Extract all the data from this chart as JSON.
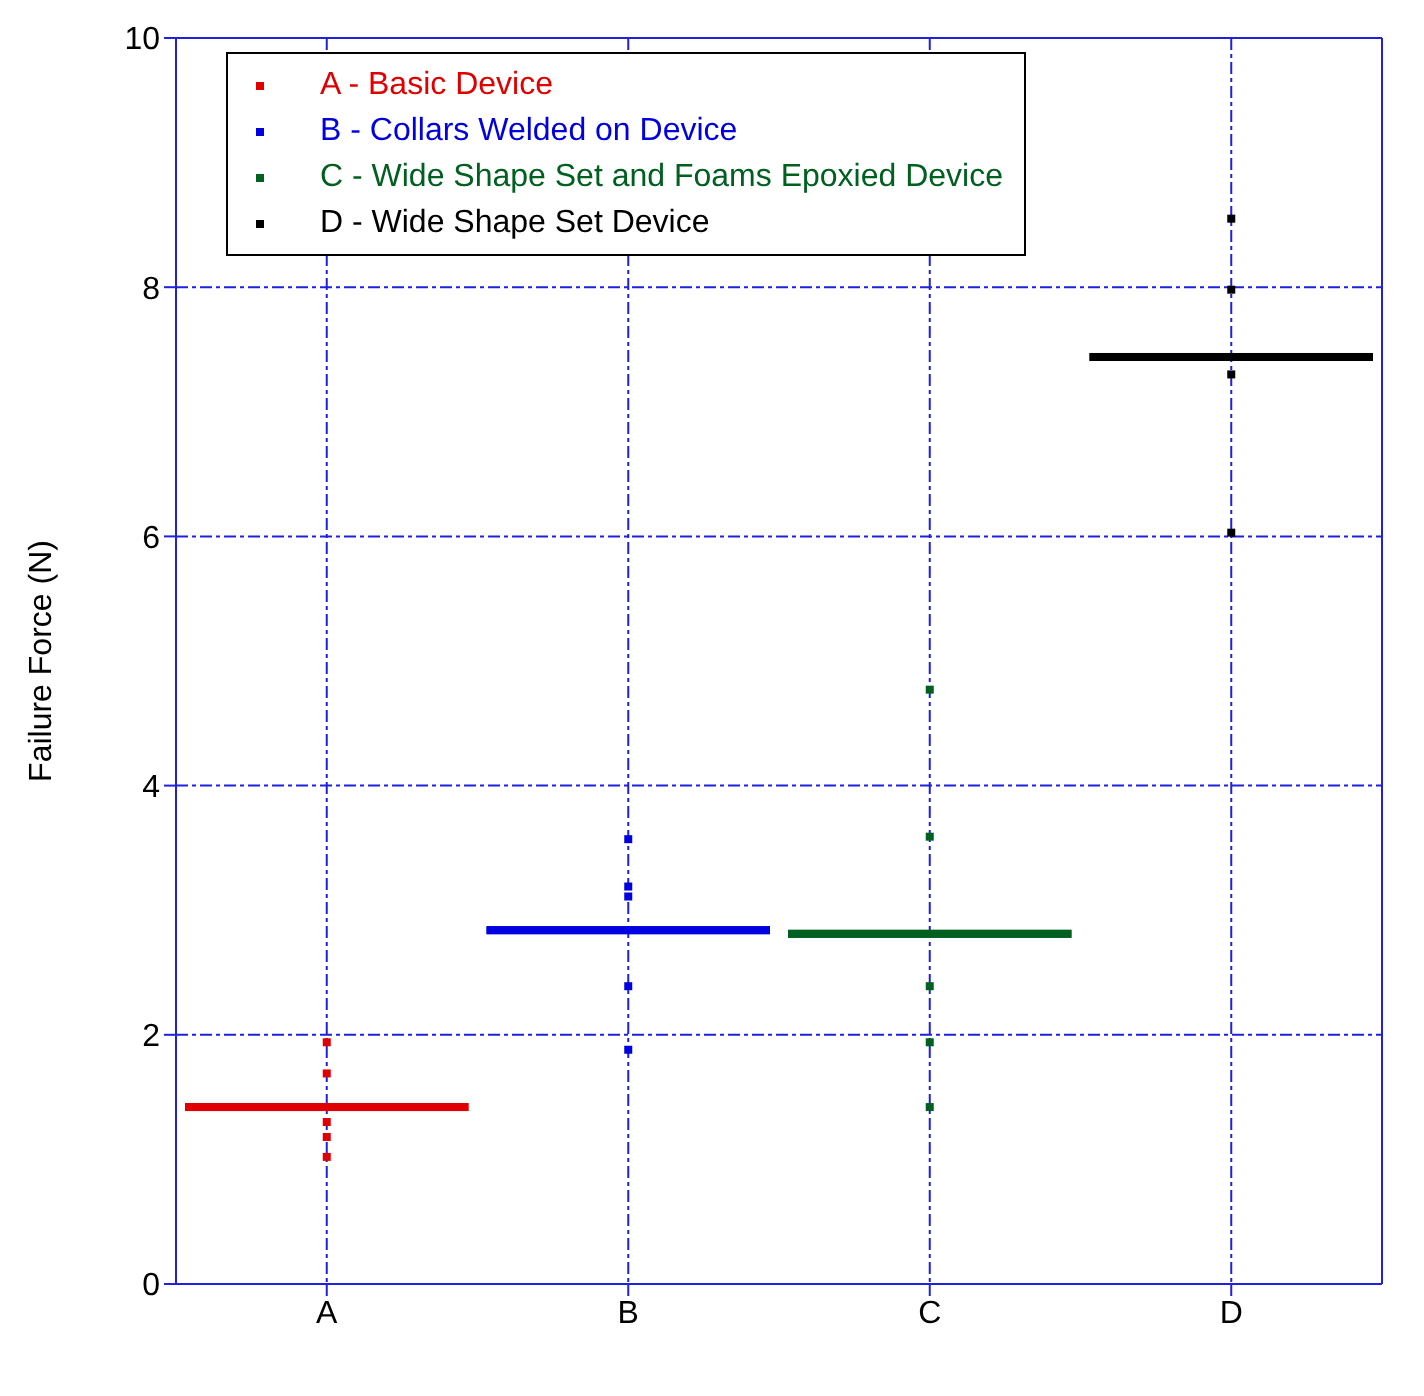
{
  "chart_data": {
    "type": "box",
    "ylabel": "Failure Force (N)",
    "categories": [
      "A",
      "B",
      "C",
      "D"
    ],
    "ylim": [
      0,
      10
    ],
    "yticks": [
      0,
      2,
      4,
      6,
      8,
      10
    ],
    "grid": true,
    "legend": "top left",
    "marker": "square",
    "series": [
      {
        "colors": [
          "#e00000",
          "#0000e0",
          "#006020",
          "#000000"
        ],
        "boxes": [
          {
            "low": 1.42,
            "q1": 1.42,
            "median": 1.42,
            "q3": 1.42,
            "high": 1.42
          },
          {
            "low": 2.84,
            "q1": 2.84,
            "median": 2.84,
            "q3": 2.84,
            "high": 2.84
          },
          {
            "low": 2.81,
            "q1": 2.81,
            "median": 2.81,
            "q3": 2.81,
            "high": 2.81
          },
          {
            "low": 7.44,
            "q1": 7.44,
            "median": 7.44,
            "q3": 7.44,
            "high": 7.44
          }
        ]
      },
      {
        "type": "scatter",
        "name": "A - Basic Device",
        "color": "#e00000",
        "x": [
          "A",
          "A",
          "A",
          "A",
          "A"
        ],
        "values": [
          1.94,
          1.69,
          1.3,
          1.18,
          1.02
        ]
      },
      {
        "type": "scatter",
        "name": "B - Collars Welded on Device",
        "color": "#0000e0",
        "x": [
          "B",
          "B",
          "B",
          "B",
          "B"
        ],
        "values": [
          3.57,
          3.19,
          3.11,
          2.39,
          1.88
        ]
      },
      {
        "type": "scatter",
        "name": "C - Wide Shape Set and Foams Epoxied Device",
        "color": "#006020",
        "x": [
          "C",
          "C",
          "C",
          "C",
          "C"
        ],
        "values": [
          4.77,
          3.59,
          2.39,
          1.94,
          1.42
        ]
      },
      {
        "type": "scatter",
        "name": "D - Wide Shape Set Device",
        "color": "#000000",
        "x": [
          "D",
          "D",
          "D",
          "D"
        ],
        "values": [
          8.55,
          7.98,
          7.3,
          6.03
        ]
      }
    ]
  }
}
